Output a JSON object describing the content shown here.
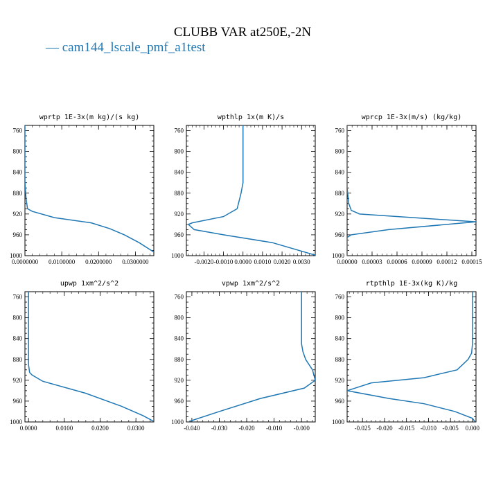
{
  "figure": {
    "title": "CLUBB VAR at250E,-2N",
    "legend": "— cam144_lscale_pmf_a1test",
    "line_color": "#1f77b4"
  },
  "chart_data": [
    {
      "type": "line",
      "title": "wprtp  1E-3x(m kg)/(s kg)",
      "xlim": [
        0,
        0.035
      ],
      "ylim": [
        1000,
        750
      ],
      "xticks": [
        0.0,
        0.01,
        0.02,
        0.03
      ],
      "xtick_labels": [
        "0.0000000",
        "0.0100000",
        "0.0200000",
        "0.0300000"
      ],
      "yticks": [
        760,
        800,
        840,
        880,
        920,
        960,
        1000
      ],
      "series": [
        {
          "x": [
            0.0,
            0.0,
            0.0003,
            0.0007,
            0.002,
            0.008,
            0.018,
            0.023,
            0.027,
            0.031,
            0.035
          ],
          "y": [
            750,
            860,
            890,
            910,
            915,
            927,
            937,
            948,
            960,
            975,
            993
          ]
        }
      ]
    },
    {
      "type": "line",
      "title": "wpthlp  1x(m K)/s",
      "xlim": [
        -0.0029,
        0.0037
      ],
      "ylim": [
        1000,
        750
      ],
      "xticks": [
        -0.002,
        -0.001,
        0.0,
        0.001,
        0.002,
        0.003
      ],
      "xtick_labels": [
        "-0.0020",
        "-0.0010",
        "0.0000",
        "0.0010",
        "0.0020",
        "0.0030"
      ],
      "yticks": [
        760,
        800,
        840,
        880,
        920,
        960,
        1000
      ],
      "series": [
        {
          "x": [
            0.0,
            0.0,
            -0.0001,
            -0.0002,
            -0.0003,
            -0.001,
            -0.0026,
            -0.0028,
            -0.0025,
            -0.001,
            0.0015,
            0.0037
          ],
          "y": [
            750,
            860,
            880,
            895,
            910,
            925,
            937,
            940,
            950,
            960,
            975,
            999
          ]
        }
      ]
    },
    {
      "type": "line",
      "title": "wprcp  1E-3x(m/s) (kg/kg)",
      "xlim": [
        0,
        0.000155
      ],
      "ylim": [
        1000,
        750
      ],
      "xticks": [
        0.0,
        3e-05,
        6e-05,
        9e-05,
        0.00012,
        0.00015
      ],
      "xtick_labels": [
        "0.00000",
        "0.00003",
        "0.00006",
        "0.00009",
        "0.00012",
        "0.00015"
      ],
      "yticks": [
        760,
        800,
        840,
        880,
        920,
        960,
        1000
      ],
      "series": [
        {
          "x": [
            0.0,
            0.0,
            2e-06,
            5e-06,
            1.5e-05,
            0.000155,
            5e-05,
            5e-06,
            0.0,
            0.0
          ],
          "y": [
            750,
            870,
            900,
            913,
            920,
            935,
            950,
            960,
            965,
            1000
          ]
        }
      ]
    },
    {
      "type": "line",
      "title": "upwp  1xm^2/s^2",
      "xlim": [
        -0.001,
        0.035
      ],
      "ylim": [
        1000,
        750
      ],
      "xticks": [
        0.0,
        0.01,
        0.02,
        0.03
      ],
      "xtick_labels": [
        "0.0000",
        "0.0100",
        "0.0200",
        "0.0300"
      ],
      "yticks": [
        760,
        800,
        840,
        880,
        920,
        960,
        1000
      ],
      "series": [
        {
          "x": [
            0.0,
            0.0,
            0.0003,
            0.001,
            0.004,
            0.016,
            0.026,
            0.032,
            0.035
          ],
          "y": [
            750,
            890,
            905,
            910,
            922,
            945,
            970,
            988,
            999
          ]
        }
      ]
    },
    {
      "type": "line",
      "title": "vpwp  1xm^2/s^2",
      "xlim": [
        -0.042,
        0.005
      ],
      "ylim": [
        1000,
        750
      ],
      "xticks": [
        -0.04,
        -0.03,
        -0.02,
        -0.01,
        0.0
      ],
      "xtick_labels": [
        "-0.040",
        "-0.030",
        "-0.020",
        "-0.010",
        "-0.000"
      ],
      "yticks": [
        760,
        800,
        840,
        880,
        920,
        960,
        1000
      ],
      "series": [
        {
          "x": [
            0.0,
            0.0,
            0.0005,
            0.0015,
            0.004,
            0.005,
            0.001,
            -0.015,
            -0.03,
            -0.041
          ],
          "y": [
            750,
            850,
            865,
            880,
            900,
            920,
            935,
            955,
            980,
            999
          ]
        }
      ]
    },
    {
      "type": "line",
      "title": "rtpthlp  1E-3x(kg K)/kg",
      "xlim": [
        -0.0285,
        0.0008
      ],
      "ylim": [
        1000,
        750
      ],
      "xticks": [
        -0.025,
        -0.02,
        -0.015,
        -0.01,
        -0.005,
        0.0
      ],
      "xtick_labels": [
        "-0.025",
        "-0.020",
        "-0.015",
        "-0.010",
        "-0.005",
        "0.000"
      ],
      "yticks": [
        760,
        800,
        840,
        880,
        920,
        960,
        1000
      ],
      "series": [
        {
          "x": [
            0.0,
            0.0,
            -0.0002,
            -0.001,
            -0.0035,
            -0.011,
            -0.023,
            -0.0285,
            -0.019,
            -0.011,
            -0.004,
            0.0,
            0.0006
          ],
          "y": [
            750,
            850,
            868,
            880,
            900,
            915,
            925,
            940,
            955,
            965,
            980,
            993,
            1000
          ]
        }
      ]
    }
  ]
}
